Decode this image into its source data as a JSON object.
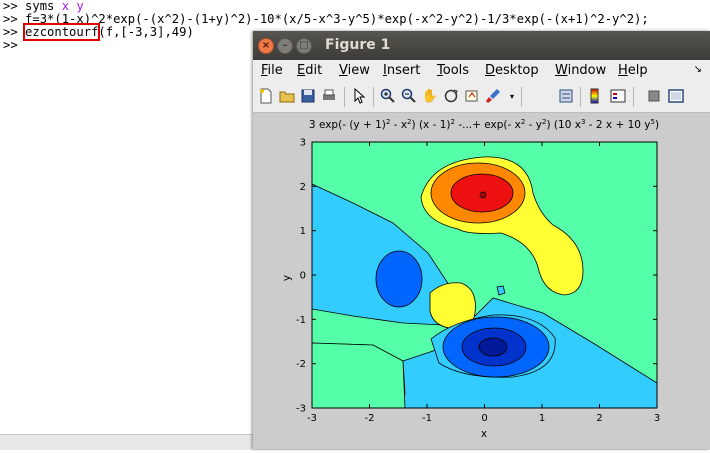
{
  "command_window": {
    "prompt": ">>",
    "line1": {
      "cmd": "syms",
      "args": [
        "x",
        "y"
      ]
    },
    "line2": {
      "text": "f=3*(1-x)^2*exp(-(x^2)-(1+y)^2)-10*(x/5-x^3-y^5)*exp(-x^2-y^2)-1/3*exp(-(x+1)^2-y^2);"
    },
    "line3": {
      "func": "ezcontourf",
      "rest": "(f,[-3,3],49)"
    }
  },
  "figure": {
    "title": "Figure 1",
    "menus": [
      "File",
      "Edit",
      "View",
      "Insert",
      "Tools",
      "Desktop",
      "Window",
      "Help"
    ],
    "toolbar_icons": [
      "new-figure-icon",
      "open-file-icon",
      "save-icon",
      "print-icon",
      "pointer-icon",
      "zoom-in-icon",
      "zoom-out-icon",
      "pan-icon",
      "rotate-3d-icon",
      "data-cursor-icon",
      "brush-icon",
      "link-icon",
      "colorbar-icon",
      "legend-icon",
      "hide-tools-icon",
      "show-tools-icon"
    ]
  },
  "chart_data": {
    "type": "contourf",
    "title_main": "3 exp(- (y + 1)",
    "title_parts": [
      "2",
      " - x",
      "2",
      ") (x - 1)",
      "2",
      " -...+ exp(- x",
      "2",
      " - y",
      "2",
      ") (10 x",
      "3",
      " - 2 x + 10 y",
      "5",
      ")"
    ],
    "xlabel": "x",
    "ylabel": "y",
    "xlim": [
      -3,
      3
    ],
    "ylim": [
      -3,
      3
    ],
    "xticks": [
      "-3",
      "-2",
      "-1",
      "0",
      "1",
      "2",
      "3"
    ],
    "yticks": [
      "3",
      "2",
      "1",
      "0",
      "-1",
      "-2",
      "-3"
    ],
    "grid_points": 49
  }
}
